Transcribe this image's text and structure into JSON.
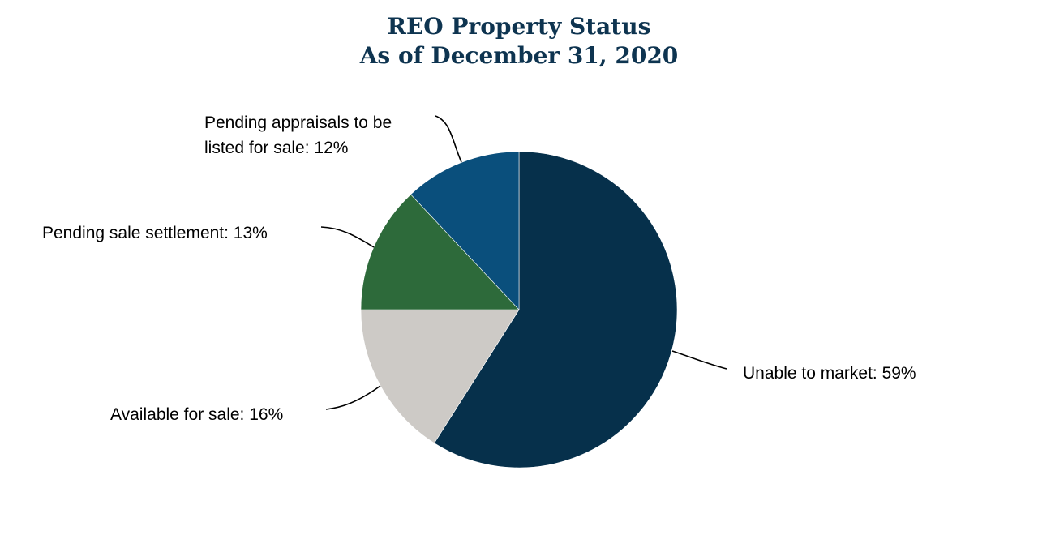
{
  "chart_data": {
    "type": "pie",
    "title_lines": [
      "REO Property Status",
      "As of December 31, 2020"
    ],
    "slices": [
      {
        "label": "Unable to market: 59%",
        "value": 59,
        "color": "#06304b"
      },
      {
        "label": "Available for sale: 16%",
        "value": 16,
        "color": "#cdcac6"
      },
      {
        "label": "Pending sale settlement: 13%",
        "value": 13,
        "color": "#2d6a3a"
      },
      {
        "label_lines": [
          "Pending appraisals to be",
          "listed for sale: 12%"
        ],
        "value": 12,
        "color": "#0a4f7c"
      }
    ],
    "title_color": "#0e3450",
    "start": "top",
    "direction": "clockwise"
  }
}
